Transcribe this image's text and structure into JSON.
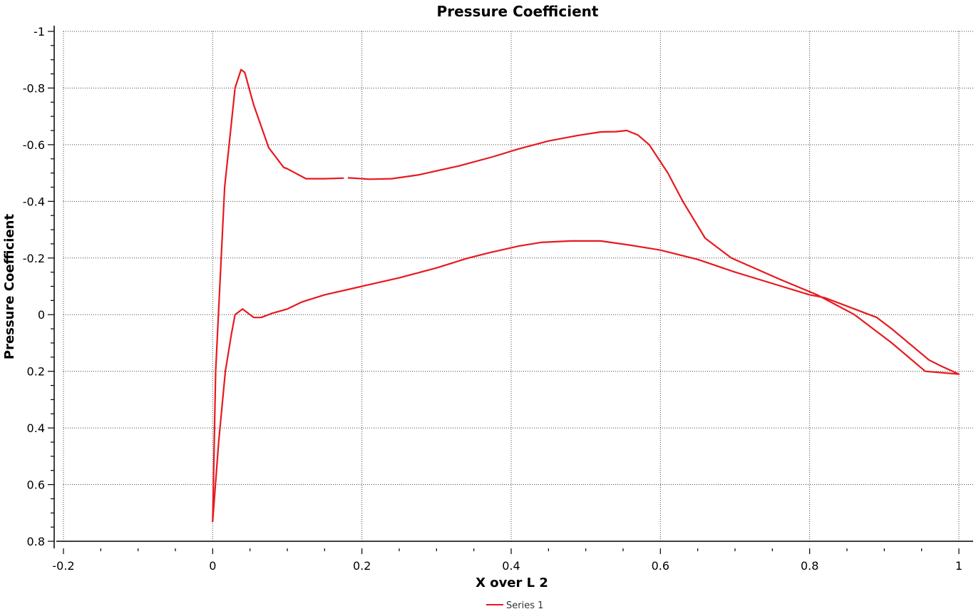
{
  "chart_data": {
    "type": "line",
    "title": "Pressure Coefficient",
    "xlabel": "X over L 2",
    "ylabel": "Pressure Coefficient",
    "xlim": [
      -0.2,
      1.0
    ],
    "ylim": [
      0.8,
      -1.0
    ],
    "y_inverted": true,
    "xticks": [
      -0.2,
      0,
      0.2,
      0.4,
      0.6,
      0.8,
      1.0
    ],
    "xtick_labels": [
      "-0.2",
      "0",
      "0.2",
      "0.4",
      "0.6",
      "0.8",
      "1"
    ],
    "yticks": [
      -1,
      -0.8,
      -0.6,
      -0.4,
      -0.2,
      0,
      0.2,
      0.4,
      0.6,
      0.8
    ],
    "ytick_labels": [
      "-1",
      "-0.8",
      "-0.6",
      "-0.4",
      "-0.2",
      "0",
      "0.2",
      "0.4",
      "0.6",
      "0.8"
    ],
    "grid": true,
    "legend_position": "bottom-center",
    "series": [
      {
        "name": "Series 1",
        "color": "#e8191e",
        "segments": [
          [
            [
              0.0,
              0.73
            ],
            [
              0.004,
              0.2
            ],
            [
              0.016,
              -0.45
            ],
            [
              0.022,
              -0.6
            ],
            [
              0.03,
              -0.8
            ],
            [
              0.038,
              -0.865
            ],
            [
              0.043,
              -0.855
            ],
            [
              0.055,
              -0.74
            ],
            [
              0.075,
              -0.59
            ],
            [
              0.095,
              -0.52
            ],
            [
              0.1,
              -0.515
            ],
            [
              0.125,
              -0.48
            ],
            [
              0.15,
              -0.48
            ],
            [
              0.175,
              -0.482
            ]
          ],
          [
            [
              0.182,
              -0.483
            ],
            [
              0.21,
              -0.478
            ],
            [
              0.24,
              -0.48
            ],
            [
              0.275,
              -0.493
            ],
            [
              0.33,
              -0.525
            ],
            [
              0.375,
              -0.557
            ],
            [
              0.41,
              -0.585
            ],
            [
              0.45,
              -0.613
            ],
            [
              0.49,
              -0.633
            ],
            [
              0.52,
              -0.645
            ],
            [
              0.54,
              -0.646
            ],
            [
              0.555,
              -0.65
            ],
            [
              0.57,
              -0.634
            ],
            [
              0.585,
              -0.6
            ],
            [
              0.61,
              -0.5
            ],
            [
              0.63,
              -0.4
            ],
            [
              0.66,
              -0.27
            ],
            [
              0.695,
              -0.2
            ],
            [
              0.76,
              -0.125
            ],
            [
              0.81,
              -0.07
            ],
            [
              0.86,
              0.0
            ],
            [
              0.91,
              0.1
            ],
            [
              0.955,
              0.2
            ],
            [
              1.0,
              0.21
            ]
          ],
          [
            [
              0.0,
              0.73
            ],
            [
              0.008,
              0.45
            ],
            [
              0.017,
              0.2
            ],
            [
              0.025,
              0.07
            ],
            [
              0.03,
              0.0
            ],
            [
              0.04,
              -0.02
            ],
            [
              0.045,
              -0.01
            ],
            [
              0.055,
              0.01
            ],
            [
              0.065,
              0.01
            ],
            [
              0.08,
              -0.005
            ],
            [
              0.1,
              -0.02
            ],
            [
              0.12,
              -0.045
            ],
            [
              0.15,
              -0.07
            ],
            [
              0.2,
              -0.1
            ],
            [
              0.25,
              -0.13
            ],
            [
              0.3,
              -0.165
            ],
            [
              0.34,
              -0.198
            ],
            [
              0.37,
              -0.218
            ],
            [
              0.41,
              -0.242
            ],
            [
              0.44,
              -0.255
            ],
            [
              0.48,
              -0.26
            ],
            [
              0.52,
              -0.26
            ],
            [
              0.56,
              -0.245
            ],
            [
              0.6,
              -0.228
            ],
            [
              0.65,
              -0.195
            ],
            [
              0.7,
              -0.15
            ],
            [
              0.75,
              -0.11
            ],
            [
              0.8,
              -0.07
            ],
            [
              0.82,
              -0.06
            ],
            [
              0.85,
              -0.03
            ],
            [
              0.89,
              0.01
            ],
            [
              0.91,
              0.05
            ],
            [
              0.96,
              0.16
            ],
            [
              0.975,
              0.18
            ],
            [
              1.0,
              0.21
            ]
          ]
        ]
      }
    ]
  }
}
